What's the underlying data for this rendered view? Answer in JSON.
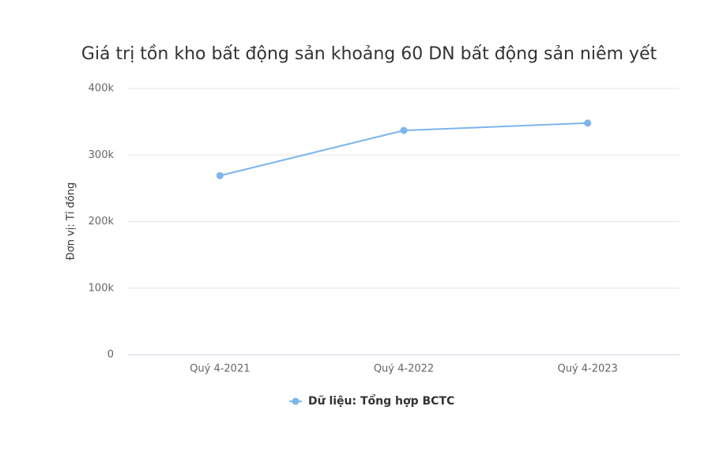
{
  "chart_data": {
    "type": "line",
    "title": "Giá trị tồn kho bất động sản khoảng 60 DN bất động sản niêm yết",
    "y_label": "Đơn vị: Tỉ đồng",
    "categories": [
      "Quý 4-2021",
      "Quý 4-2022",
      "Quý 4-2023"
    ],
    "series": [
      {
        "name": "Dữ liệu: Tổng hợp BCTC",
        "color": "#7cb5ec",
        "values": [
          269000,
          337000,
          348000
        ]
      }
    ],
    "ylim": [
      0,
      400000
    ],
    "yticks": [
      0,
      {
        "value": 100000,
        "label": "100k"
      },
      {
        "value": 200000,
        "label": "200k"
      },
      {
        "value": 300000,
        "label": "300k"
      },
      {
        "value": 400000,
        "label": "400k"
      }
    ],
    "grid": true,
    "legend": "bottom"
  }
}
